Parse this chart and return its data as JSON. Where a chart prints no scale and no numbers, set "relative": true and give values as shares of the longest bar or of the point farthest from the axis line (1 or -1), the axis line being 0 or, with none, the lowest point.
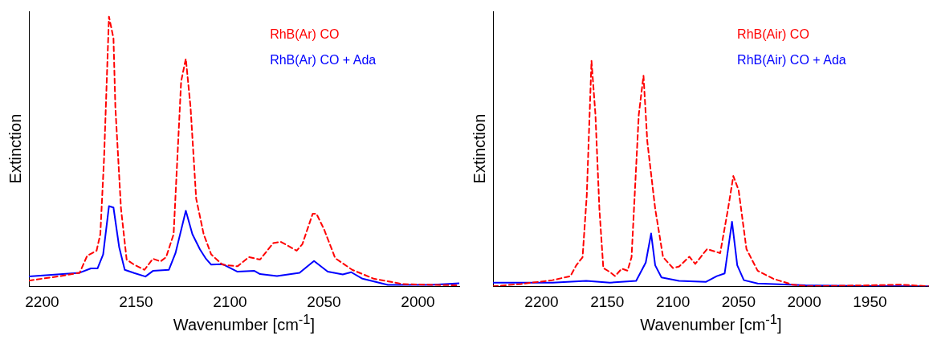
{
  "chart_data": [
    {
      "type": "line",
      "xlabel": "Wavenumber [cm$^{-1}$]",
      "ylabel": "Extinction",
      "relative": true,
      "xlim": [
        2207,
        1978
      ],
      "xticks": [
        2200,
        2150,
        2100,
        2050,
        2000
      ],
      "grid": false,
      "legend": "top right",
      "marker": "none",
      "series": [
        {
          "name": "RhB(Ar) CO",
          "color": "#ff0000",
          "line_style": "dashed",
          "x": [
            2207,
            2190,
            2180,
            2176,
            2171,
            2169,
            2167,
            2164.4,
            2162,
            2161,
            2158,
            2155,
            2151,
            2145.5,
            2141,
            2137,
            2134,
            2130,
            2126,
            2123.5,
            2121,
            2118,
            2114,
            2110,
            2104,
            2096,
            2090,
            2084,
            2077,
            2073,
            2064.5,
            2061.5,
            2056,
            2054,
            2050,
            2044,
            2035,
            2023.5,
            2008,
            1978
          ],
          "values": [
            0.021,
            0.038,
            0.05,
            0.113,
            0.132,
            0.193,
            0.476,
            1.0,
            0.92,
            0.665,
            0.288,
            0.099,
            0.08,
            0.061,
            0.102,
            0.092,
            0.108,
            0.193,
            0.76,
            0.844,
            0.665,
            0.325,
            0.193,
            0.118,
            0.08,
            0.074,
            0.108,
            0.099,
            0.16,
            0.165,
            0.132,
            0.156,
            0.269,
            0.269,
            0.212,
            0.104,
            0.061,
            0.028,
            0.008,
            0.003
          ]
        },
        {
          "name": "RhB(Ar) CO + Ada",
          "color": "#0000ff",
          "line_style": "solid",
          "x": [
            2207,
            2180,
            2174,
            2170.5,
            2167.5,
            2164.4,
            2162,
            2159,
            2156,
            2151,
            2145,
            2141,
            2132.5,
            2129,
            2123.5,
            2120,
            2116,
            2113,
            2110,
            2104,
            2096,
            2087,
            2084,
            2075,
            2063,
            2055.3,
            2048,
            2040,
            2035.5,
            2029.5,
            2016,
            1993,
            1978
          ],
          "values": [
            0.036,
            0.05,
            0.066,
            0.066,
            0.118,
            0.297,
            0.292,
            0.146,
            0.061,
            0.049,
            0.036,
            0.057,
            0.061,
            0.123,
            0.28,
            0.193,
            0.137,
            0.104,
            0.08,
            0.082,
            0.054,
            0.057,
            0.045,
            0.038,
            0.05,
            0.094,
            0.054,
            0.044,
            0.052,
            0.028,
            0.005,
            0.005,
            0.011
          ]
        }
      ]
    },
    {
      "type": "line",
      "xlabel": "Wavenumber [cm$^{-1}$]",
      "ylabel": "Extinction",
      "relative": true,
      "xlim": [
        2237,
        1905
      ],
      "xticks": [
        2200,
        2150,
        2100,
        2050,
        2000,
        1950
      ],
      "grid": false,
      "legend": "top right",
      "marker": "none",
      "series": [
        {
          "name": "RhB(Air) CO",
          "color": "#ff0000",
          "line_style": "dashed",
          "x": [
            2237,
            2215.6,
            2191.6,
            2178,
            2173.6,
            2168.8,
            2165.6,
            2162,
            2159,
            2156,
            2153,
            2148,
            2144,
            2139,
            2134.6,
            2131.5,
            2126,
            2122.4,
            2119.5,
            2113.5,
            2107.5,
            2100,
            2095.4,
            2087.5,
            2083,
            2074,
            2064,
            2058,
            2054,
            2050,
            2044,
            2035.5,
            2023.5,
            2009,
            1997,
            1951,
            1927,
            1905
          ],
          "values": [
            0,
            0.01,
            0.027,
            0.045,
            0.093,
            0.129,
            0.403,
            1.0,
            0.761,
            0.344,
            0.081,
            0.063,
            0.045,
            0.078,
            0.069,
            0.129,
            0.761,
            0.934,
            0.642,
            0.344,
            0.129,
            0.081,
            0.087,
            0.131,
            0.099,
            0.165,
            0.147,
            0.344,
            0.489,
            0.427,
            0.165,
            0.069,
            0.033,
            0.007,
            0,
            0.004,
            0.007,
            0
          ]
        },
        {
          "name": "RhB(Air) CO + Ada",
          "color": "#0000ff",
          "line_style": "solid",
          "x": [
            2237,
            2191.6,
            2166,
            2148,
            2128,
            2120.7,
            2116.6,
            2113.5,
            2108.7,
            2095.4,
            2075,
            2066.6,
            2060.6,
            2055,
            2051,
            2046,
            2035.5,
            1999,
            1951,
            1905
          ],
          "values": [
            0.016,
            0.016,
            0.024,
            0.016,
            0.024,
            0.105,
            0.234,
            0.093,
            0.039,
            0.024,
            0.019,
            0.045,
            0.057,
            0.286,
            0.093,
            0.027,
            0.012,
            0.004,
            0.001,
            0
          ]
        }
      ]
    }
  ]
}
